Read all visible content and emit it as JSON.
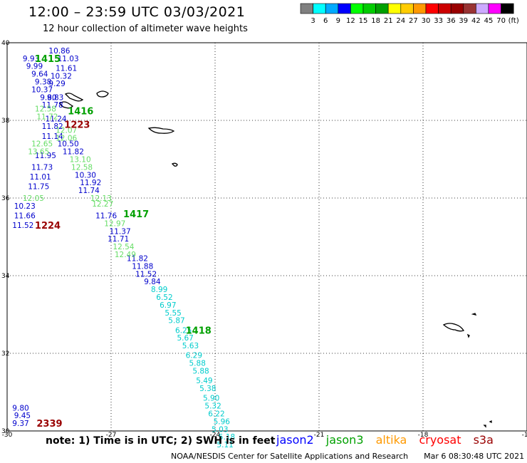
{
  "header": {
    "title": "12:00 – 23:59 UTC 03/03/2021",
    "subtitle": "12 hour collection of altimeter wave heights"
  },
  "colorbar": {
    "labels": [
      "3",
      "6",
      "9",
      "12",
      "15",
      "18",
      "21",
      "24",
      "27",
      "30",
      "33",
      "36",
      "39",
      "42",
      "45",
      "70",
      "(ft)"
    ],
    "colors": [
      "#808080",
      "#00ffff",
      "#00aaff",
      "#0000ff",
      "#00ff00",
      "#00cc00",
      "#00a000",
      "#ffff00",
      "#ffcc00",
      "#ff9900",
      "#ff0000",
      "#cc0000",
      "#990000",
      "#993333",
      "#ccaaff",
      "#ff00ff",
      "#000000"
    ]
  },
  "footer": {
    "note": "note: 1) Time is in UTC; 2) SWH is in feet",
    "legend": [
      {
        "name": "jason2",
        "color": "#0000ff"
      },
      {
        "name": "jason3",
        "color": "#00a000"
      },
      {
        "name": "altika",
        "color": "#ff9900"
      },
      {
        "name": "cryosat",
        "color": "#ff0000"
      },
      {
        "name": "s3a",
        "color": "#990000"
      }
    ],
    "credit": "NOAA/NESDIS Center for Satellite Applications and Research",
    "timestamp": "Mar  6 08:30:48 UTC 2021"
  },
  "chart_data": {
    "type": "scatter",
    "title": "12:00 – 23:59 UTC 03/03/2021",
    "xlim": [
      -30,
      -15
    ],
    "ylim": [
      30,
      40
    ],
    "xticks": [
      "-30",
      "-27",
      "-24",
      "-21",
      "-18",
      "-15"
    ],
    "yticks": [
      "30",
      "32",
      "34",
      "36",
      "38",
      "40"
    ],
    "grid": true,
    "series": [
      {
        "name": "jason2",
        "color": "#0000cc",
        "points": [
          {
            "x": -28.8,
            "y": 39.8,
            "v": "10.86"
          },
          {
            "x": -29.55,
            "y": 39.6,
            "v": "9.93"
          },
          {
            "x": -28.55,
            "y": 39.6,
            "v": "11.03"
          },
          {
            "x": -29.45,
            "y": 39.4,
            "v": "9.99"
          },
          {
            "x": -28.6,
            "y": 39.35,
            "v": "11.61"
          },
          {
            "x": -29.3,
            "y": 39.2,
            "v": "9.64"
          },
          {
            "x": -28.75,
            "y": 39.15,
            "v": "10.32"
          },
          {
            "x": -29.2,
            "y": 39.0,
            "v": "9.38"
          },
          {
            "x": -29.3,
            "y": 38.8,
            "v": "10.37"
          },
          {
            "x": -28.8,
            "y": 38.95,
            "v": "9.29"
          },
          {
            "x": -29.05,
            "y": 38.6,
            "v": "9.80"
          },
          {
            "x": -28.85,
            "y": 38.6,
            "v": "9.83"
          },
          {
            "x": -29.0,
            "y": 38.4,
            "v": "11.78"
          },
          {
            "x": -28.9,
            "y": 38.05,
            "v": "11.24"
          },
          {
            "x": -29.0,
            "y": 37.85,
            "v": "11.82"
          },
          {
            "x": -29.0,
            "y": 37.6,
            "v": "11.14"
          },
          {
            "x": -28.55,
            "y": 37.4,
            "v": "10.50"
          },
          {
            "x": -28.4,
            "y": 37.2,
            "v": "11.82"
          },
          {
            "x": -29.2,
            "y": 37.1,
            "v": "11.95"
          },
          {
            "x": -29.3,
            "y": 36.8,
            "v": "11.73"
          },
          {
            "x": -29.35,
            "y": 36.55,
            "v": "11.01"
          },
          {
            "x": -28.05,
            "y": 36.6,
            "v": "10.30"
          },
          {
            "x": -27.9,
            "y": 36.4,
            "v": "11.92"
          },
          {
            "x": -29.4,
            "y": 36.3,
            "v": "11.75"
          },
          {
            "x": -27.95,
            "y": 36.2,
            "v": "11.74"
          },
          {
            "x": -29.8,
            "y": 35.8,
            "v": "10.23"
          },
          {
            "x": -29.8,
            "y": 35.55,
            "v": "11.66"
          },
          {
            "x": -27.45,
            "y": 35.55,
            "v": "11.76"
          },
          {
            "x": -29.85,
            "y": 35.3,
            "v": "11.52"
          },
          {
            "x": -27.05,
            "y": 35.15,
            "v": "11.37"
          },
          {
            "x": -27.1,
            "y": 34.95,
            "v": "11.71"
          },
          {
            "x": -26.55,
            "y": 34.45,
            "v": "11.82"
          },
          {
            "x": -26.4,
            "y": 34.25,
            "v": "11.88"
          },
          {
            "x": -26.3,
            "y": 34.05,
            "v": "11.52"
          },
          {
            "x": -26.05,
            "y": 33.85,
            "v": "9.84"
          },
          {
            "x": -29.85,
            "y": 30.6,
            "v": "9.80"
          },
          {
            "x": -29.8,
            "y": 30.4,
            "v": "9.45"
          },
          {
            "x": -29.85,
            "y": 30.2,
            "v": "9.37"
          }
        ]
      },
      {
        "name": "jason3",
        "color": "#66dd66",
        "points": [
          {
            "x": -29.2,
            "y": 38.3,
            "v": "12.58"
          },
          {
            "x": -29.15,
            "y": 38.1,
            "v": "11.72"
          },
          {
            "x": -28.6,
            "y": 37.75,
            "v": "12.07"
          },
          {
            "x": -28.6,
            "y": 37.55,
            "v": "12.06"
          },
          {
            "x": -29.3,
            "y": 37.4,
            "v": "12.65"
          },
          {
            "x": -29.4,
            "y": 37.2,
            "v": "13.65"
          },
          {
            "x": -28.2,
            "y": 37.0,
            "v": "13.10"
          },
          {
            "x": -28.15,
            "y": 36.8,
            "v": "12.58"
          },
          {
            "x": -29.55,
            "y": 36.0,
            "v": "12.05"
          },
          {
            "x": -27.6,
            "y": 36.0,
            "v": "12.13"
          },
          {
            "x": -27.55,
            "y": 35.85,
            "v": "12.27"
          },
          {
            "x": -27.2,
            "y": 35.35,
            "v": "12.97"
          },
          {
            "x": -26.95,
            "y": 34.75,
            "v": "12.54"
          },
          {
            "x": -26.9,
            "y": 34.55,
            "v": "12.49"
          }
        ]
      },
      {
        "name": "swh-low",
        "color": "#00cccc",
        "points": [
          {
            "x": -25.85,
            "y": 33.65,
            "v": "8.99"
          },
          {
            "x": -25.7,
            "y": 33.45,
            "v": "6.52"
          },
          {
            "x": -25.6,
            "y": 33.25,
            "v": "6.97"
          },
          {
            "x": -25.45,
            "y": 33.05,
            "v": "5.55"
          },
          {
            "x": -25.35,
            "y": 32.85,
            "v": "5.87"
          },
          {
            "x": -25.15,
            "y": 32.6,
            "v": "6.25"
          },
          {
            "x": -25.1,
            "y": 32.4,
            "v": "5.67"
          },
          {
            "x": -24.95,
            "y": 32.2,
            "v": "5.63"
          },
          {
            "x": -24.85,
            "y": 31.95,
            "v": "6.29"
          },
          {
            "x": -24.75,
            "y": 31.75,
            "v": "5.88"
          },
          {
            "x": -24.65,
            "y": 31.55,
            "v": "5.88"
          },
          {
            "x": -24.55,
            "y": 31.3,
            "v": "5.49"
          },
          {
            "x": -24.45,
            "y": 31.1,
            "v": "5.38"
          },
          {
            "x": -24.35,
            "y": 30.85,
            "v": "5.90"
          },
          {
            "x": -24.3,
            "y": 30.65,
            "v": "5.32"
          },
          {
            "x": -24.2,
            "y": 30.45,
            "v": "6.22"
          },
          {
            "x": -24.05,
            "y": 30.25,
            "v": "5.96"
          },
          {
            "x": -24.1,
            "y": 30.05,
            "v": "5.03"
          },
          {
            "x": -23.9,
            "y": 29.85,
            "v": "5.18"
          },
          {
            "x": -23.95,
            "y": 29.65,
            "v": "5.11"
          }
        ]
      }
    ],
    "time_labels": [
      {
        "x": -29.2,
        "y": 39.6,
        "v": "1415",
        "color": "#00a000"
      },
      {
        "x": -28.25,
        "y": 38.25,
        "v": "1416",
        "color": "#00a000"
      },
      {
        "x": -28.35,
        "y": 37.9,
        "v": "1223",
        "color": "#990000"
      },
      {
        "x": -26.65,
        "y": 35.6,
        "v": "1417",
        "color": "#00a000"
      },
      {
        "x": -29.2,
        "y": 35.3,
        "v": "1224",
        "color": "#990000"
      },
      {
        "x": -24.85,
        "y": 32.6,
        "v": "1418",
        "color": "#00a000"
      },
      {
        "x": -29.15,
        "y": 30.2,
        "v": "2339",
        "color": "#990000"
      }
    ]
  }
}
